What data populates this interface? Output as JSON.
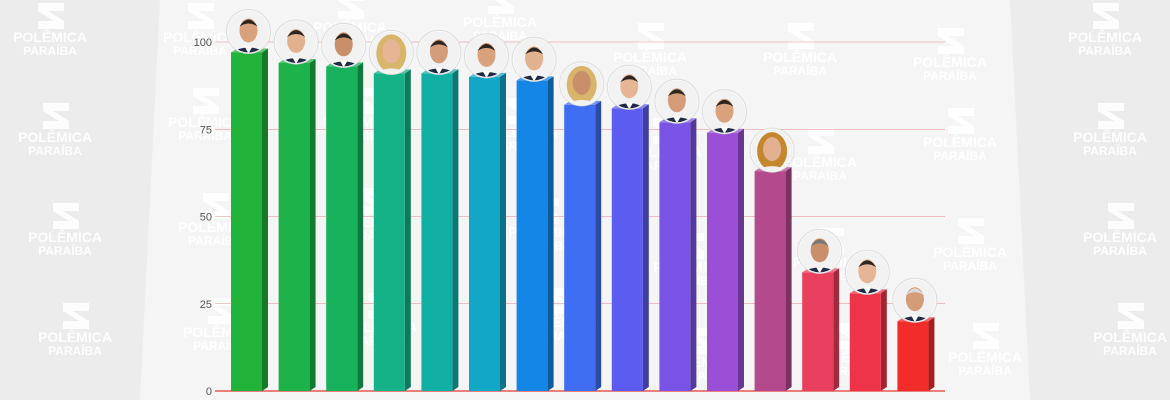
{
  "watermark": {
    "line1": "POLÊMICA",
    "line2": "PARAÍBA"
  },
  "colors": {
    "background": "#ececec",
    "panel": "#f7f7f7",
    "grid": "#e05a5a",
    "baseline": "#e53935"
  },
  "chart_data": {
    "type": "bar",
    "title": "",
    "xlabel": "",
    "ylabel": "",
    "ylim": [
      0,
      100
    ],
    "yticks": [
      "0",
      "25",
      "50",
      "75",
      "100"
    ],
    "grid": true,
    "values": [
      97,
      94,
      93,
      91,
      91,
      90,
      89,
      82,
      81,
      77,
      74,
      63,
      34,
      28,
      20
    ],
    "colors": [
      "#22b43a",
      "#1eb34a",
      "#18b25c",
      "#16b287",
      "#12b0a4",
      "#12a7c7",
      "#1486e6",
      "#3f6ef2",
      "#5c5cf0",
      "#7a54e6",
      "#9a4fd6",
      "#b4498e",
      "#e8405e",
      "#ee3448",
      "#f22b2b"
    ],
    "avatars": [
      "man",
      "man",
      "man",
      "woman",
      "man",
      "man",
      "man",
      "woman",
      "man",
      "man",
      "man",
      "woman",
      "man",
      "man",
      "man"
    ]
  }
}
